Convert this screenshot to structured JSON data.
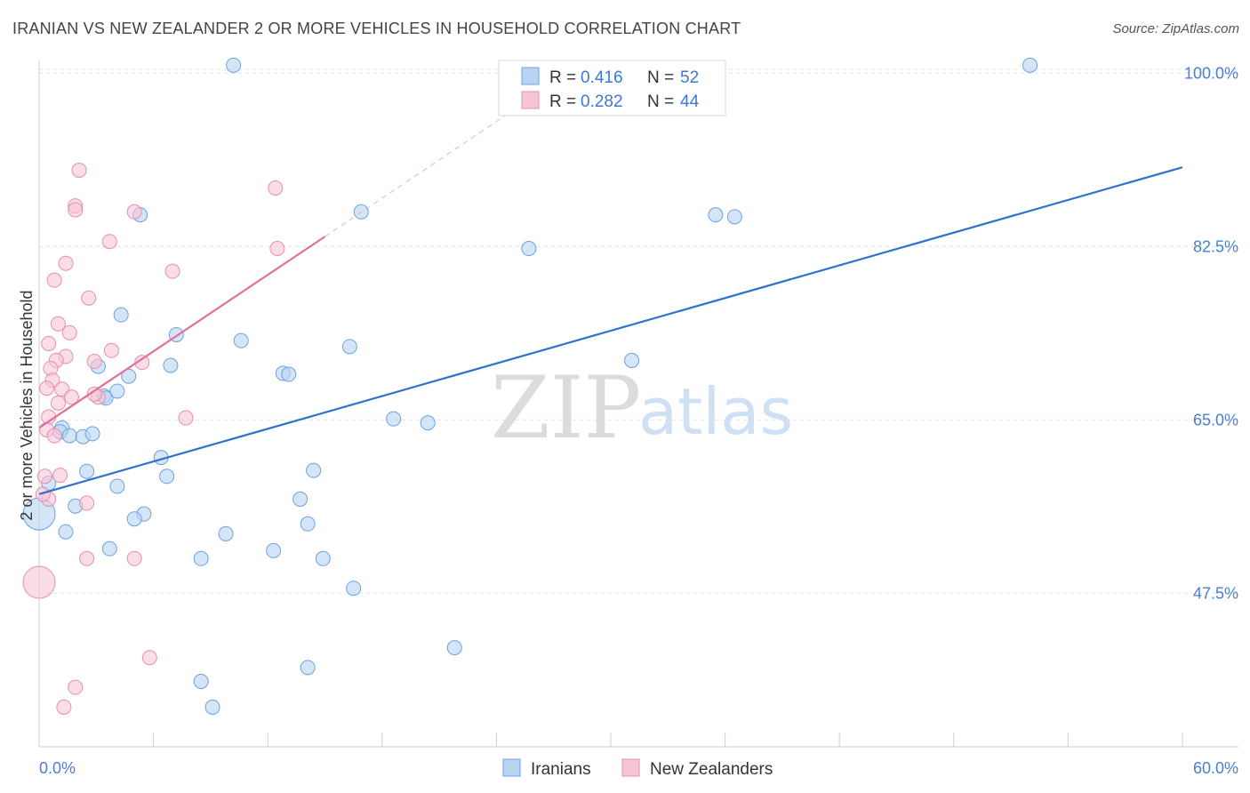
{
  "title": "IRANIAN VS NEW ZEALANDER 2 OR MORE VEHICLES IN HOUSEHOLD CORRELATION CHART",
  "source": "Source: ZipAtlas.com",
  "colors": {
    "blue_fill": "#b9d3f3",
    "blue_stroke": "#6fa0df",
    "blue_line": "#2f72cc",
    "pink_fill": "#f7c6d6",
    "pink_stroke": "#e58fae",
    "pink_line": "#e0709a",
    "grid": "#e3e3e3",
    "axis_label": "#4a7fd1"
  },
  "chart_data": {
    "type": "scatter",
    "ylabel": "2 or more Vehicles in Household",
    "xlim": [
      0,
      60
    ],
    "ylim": [
      32,
      102
    ],
    "x_tick_labels": [
      "0.0%",
      "60.0%"
    ],
    "y_ticks": [
      47.5,
      65.0,
      82.5,
      100.0
    ],
    "y_tick_labels": [
      "47.5%",
      "65.0%",
      "82.5%",
      "100.0%"
    ],
    "legend": [
      {
        "name": "Iranians",
        "r_label": "R =",
        "r": "0.416",
        "n_label": "N =",
        "n": "52"
      },
      {
        "name": "New Zealanders",
        "r_label": "R =",
        "r": "0.282",
        "n_label": "N =",
        "n": "44"
      }
    ],
    "watermark": {
      "zip": "ZIP",
      "atlas": "atlas"
    },
    "series": [
      {
        "name": "Iranians",
        "trend": {
          "x0": 0,
          "y0": 57.5,
          "x1": 60,
          "y1": 90.5
        },
        "points": [
          [
            10.2,
            100.8
          ],
          [
            52.0,
            100.8
          ],
          [
            5.3,
            85.7
          ],
          [
            16.9,
            86.0
          ],
          [
            35.5,
            85.7
          ],
          [
            36.5,
            85.5
          ],
          [
            25.7,
            82.3
          ],
          [
            4.3,
            75.6
          ],
          [
            7.2,
            73.6
          ],
          [
            10.6,
            73.0
          ],
          [
            16.3,
            72.4
          ],
          [
            31.1,
            71.0
          ],
          [
            6.9,
            70.5
          ],
          [
            3.1,
            70.4
          ],
          [
            12.8,
            69.7
          ],
          [
            13.1,
            69.6
          ],
          [
            4.7,
            69.4
          ],
          [
            3.4,
            67.4
          ],
          [
            3.5,
            67.2
          ],
          [
            4.1,
            67.9
          ],
          [
            18.6,
            65.1
          ],
          [
            20.4,
            64.7
          ],
          [
            1.2,
            64.2
          ],
          [
            1.1,
            63.8
          ],
          [
            1.6,
            63.4
          ],
          [
            2.3,
            63.3
          ],
          [
            2.8,
            63.6
          ],
          [
            6.4,
            61.2
          ],
          [
            2.5,
            59.8
          ],
          [
            6.7,
            59.3
          ],
          [
            14.4,
            59.9
          ],
          [
            0.5,
            58.6
          ],
          [
            4.1,
            58.3
          ],
          [
            13.7,
            57.0
          ],
          [
            1.9,
            56.3
          ],
          [
            5.5,
            55.5
          ],
          [
            5.0,
            55.0
          ],
          [
            14.1,
            54.5
          ],
          [
            1.4,
            53.7
          ],
          [
            9.8,
            53.5
          ],
          [
            3.7,
            52.0
          ],
          [
            12.3,
            51.8
          ],
          [
            8.5,
            51.0
          ],
          [
            14.9,
            51.0
          ],
          [
            16.5,
            48.0
          ],
          [
            21.8,
            42.0
          ],
          [
            8.5,
            38.6
          ],
          [
            14.1,
            40.0
          ],
          [
            9.1,
            36.0
          ],
          [
            0.0,
            55.5
          ]
        ],
        "big_points": [
          [
            0.0,
            55.5
          ]
        ]
      },
      {
        "name": "New Zealanders",
        "trend": {
          "x0": 0,
          "y0": 64.2,
          "x1": 15,
          "y1": 83.5
        },
        "trend_ext": {
          "x0": 15,
          "y0": 83.5,
          "x1": 27,
          "y1": 99
        },
        "points": [
          [
            2.1,
            90.2
          ],
          [
            12.4,
            88.4
          ],
          [
            1.9,
            86.6
          ],
          [
            1.9,
            86.2
          ],
          [
            5.0,
            86.0
          ],
          [
            3.7,
            83.0
          ],
          [
            12.5,
            82.3
          ],
          [
            1.4,
            80.8
          ],
          [
            7.0,
            80.0
          ],
          [
            0.8,
            79.1
          ],
          [
            2.6,
            77.3
          ],
          [
            1.0,
            74.7
          ],
          [
            1.6,
            73.8
          ],
          [
            0.5,
            72.7
          ],
          [
            3.8,
            72.0
          ],
          [
            1.4,
            71.4
          ],
          [
            0.9,
            71.0
          ],
          [
            2.9,
            70.9
          ],
          [
            5.4,
            70.8
          ],
          [
            0.6,
            70.2
          ],
          [
            0.7,
            69.0
          ],
          [
            1.2,
            68.1
          ],
          [
            0.4,
            68.2
          ],
          [
            1.7,
            67.3
          ],
          [
            3.1,
            67.3
          ],
          [
            2.9,
            67.6
          ],
          [
            1.0,
            66.7
          ],
          [
            0.5,
            65.3
          ],
          [
            7.7,
            65.2
          ],
          [
            0.4,
            64.0
          ],
          [
            0.8,
            63.4
          ],
          [
            0.3,
            59.3
          ],
          [
            1.1,
            59.4
          ],
          [
            0.5,
            57.0
          ],
          [
            2.5,
            56.6
          ],
          [
            0.2,
            57.5
          ],
          [
            2.5,
            51.0
          ],
          [
            5.0,
            51.0
          ],
          [
            5.8,
            41.0
          ],
          [
            1.9,
            38.0
          ],
          [
            1.3,
            36.0
          ],
          [
            0.0,
            48.6
          ]
        ],
        "big_points": [
          [
            0.0,
            48.6
          ]
        ]
      }
    ]
  }
}
